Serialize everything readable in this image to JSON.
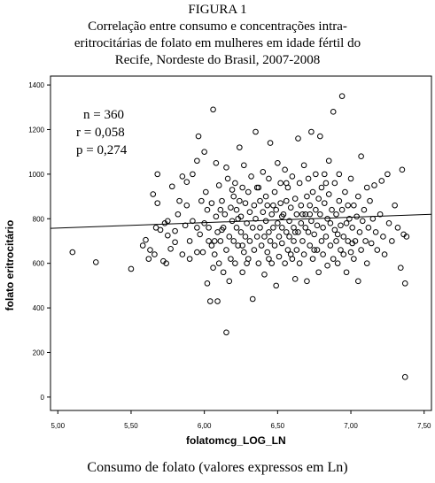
{
  "figure": {
    "title_lines": [
      "FIGURA 1",
      "Correlação entre consumo e concentrações intra-",
      "eritrocitárias de folato em mulheres em idade fértil do",
      "Recife, Nordeste do Brasil, 2007-2008"
    ],
    "caption": "Consumo de folato (valores expressos em Ln)"
  },
  "stats": {
    "n": "n = 360",
    "r": "r  = 0,058",
    "p": "p = 0,274"
  },
  "colors": {
    "background": "#ffffff",
    "plot_bg": "#ffffff",
    "axis": "#000000",
    "marker": "#000000"
  },
  "chart_data": {
    "type": "scatter",
    "title": "",
    "xlabel": "folatomcg_LOG_LN",
    "ylabel": "folato eritrocitário",
    "xlim": [
      4.95,
      7.55
    ],
    "ylim": [
      -60,
      1440
    ],
    "x_ticks": [
      5.0,
      5.5,
      6.0,
      6.5,
      7.0,
      7.5
    ],
    "x_tick_labels": [
      "5,00",
      "5,50",
      "6,00",
      "6,50",
      "7,00",
      "7,50"
    ],
    "y_ticks": [
      0,
      200,
      400,
      600,
      800,
      1000,
      1200,
      1400
    ],
    "y_tick_labels": [
      "0",
      "200",
      "400",
      "600",
      "800",
      "1000",
      "1200",
      "1400"
    ],
    "fit_line": {
      "x": [
        4.95,
        7.55
      ],
      "y": [
        757,
        820
      ]
    },
    "grid": false,
    "points": [
      [
        5.1,
        650
      ],
      [
        5.26,
        605
      ],
      [
        5.5,
        575
      ],
      [
        5.58,
        680
      ],
      [
        5.6,
        705
      ],
      [
        5.62,
        620
      ],
      [
        5.63,
        660
      ],
      [
        5.65,
        910
      ],
      [
        5.66,
        640
      ],
      [
        5.67,
        760
      ],
      [
        5.68,
        1000
      ],
      [
        5.68,
        870
      ],
      [
        5.7,
        750
      ],
      [
        5.72,
        610
      ],
      [
        5.73,
        780
      ],
      [
        5.74,
        600
      ],
      [
        5.75,
        725
      ],
      [
        5.75,
        790
      ],
      [
        5.77,
        665
      ],
      [
        5.78,
        945
      ],
      [
        5.8,
        695
      ],
      [
        5.8,
        745
      ],
      [
        5.82,
        820
      ],
      [
        5.83,
        880
      ],
      [
        5.85,
        640
      ],
      [
        5.85,
        990
      ],
      [
        5.87,
        770
      ],
      [
        5.88,
        860
      ],
      [
        5.88,
        965
      ],
      [
        5.9,
        620
      ],
      [
        5.9,
        700
      ],
      [
        5.92,
        790
      ],
      [
        5.92,
        1000
      ],
      [
        5.95,
        760
      ],
      [
        5.95,
        650
      ],
      [
        5.96,
        1170
      ],
      [
        5.97,
        730
      ],
      [
        5.98,
        880
      ],
      [
        5.99,
        650
      ],
      [
        6.0,
        1100
      ],
      [
        6.0,
        780
      ],
      [
        6.01,
        920
      ],
      [
        6.02,
        840
      ],
      [
        6.02,
        510
      ],
      [
        6.03,
        700
      ],
      [
        6.03,
        760
      ],
      [
        6.04,
        430
      ],
      [
        6.05,
        870
      ],
      [
        6.05,
        680
      ],
      [
        6.06,
        1290
      ],
      [
        6.06,
        580
      ],
      [
        6.07,
        640
      ],
      [
        6.08,
        1050
      ],
      [
        6.08,
        810
      ],
      [
        6.09,
        740
      ],
      [
        6.09,
        430
      ],
      [
        6.1,
        950
      ],
      [
        6.1,
        600
      ],
      [
        6.11,
        700
      ],
      [
        6.11,
        840
      ],
      [
        6.12,
        880
      ],
      [
        6.13,
        560
      ],
      [
        6.13,
        760
      ],
      [
        6.14,
        820
      ],
      [
        6.15,
        660
      ],
      [
        6.15,
        1030
      ],
      [
        6.15,
        290
      ],
      [
        6.16,
        980
      ],
      [
        6.17,
        720
      ],
      [
        6.17,
        520
      ],
      [
        6.18,
        850
      ],
      [
        6.18,
        620
      ],
      [
        6.19,
        790
      ],
      [
        6.2,
        900
      ],
      [
        6.2,
        700
      ],
      [
        6.21,
        960
      ],
      [
        6.21,
        600
      ],
      [
        6.22,
        760
      ],
      [
        6.22,
        840
      ],
      [
        6.23,
        680
      ],
      [
        6.24,
        1120
      ],
      [
        6.24,
        880
      ],
      [
        6.25,
        740
      ],
      [
        6.25,
        810
      ],
      [
        6.26,
        560
      ],
      [
        6.26,
        940
      ],
      [
        6.27,
        650
      ],
      [
        6.27,
        1040
      ],
      [
        6.28,
        720
      ],
      [
        6.28,
        870
      ],
      [
        6.29,
        780
      ],
      [
        6.3,
        920
      ],
      [
        6.3,
        620
      ],
      [
        6.31,
        830
      ],
      [
        6.31,
        700
      ],
      [
        6.32,
        990
      ],
      [
        6.33,
        760
      ],
      [
        6.33,
        440
      ],
      [
        6.34,
        860
      ],
      [
        6.34,
        660
      ],
      [
        6.35,
        1190
      ],
      [
        6.35,
        800
      ],
      [
        6.36,
        720
      ],
      [
        6.36,
        940
      ],
      [
        6.37,
        600
      ],
      [
        6.38,
        880
      ],
      [
        6.38,
        760
      ],
      [
        6.39,
        680
      ],
      [
        6.4,
        830
      ],
      [
        6.4,
        1010
      ],
      [
        6.41,
        720
      ],
      [
        6.41,
        550
      ],
      [
        6.42,
        900
      ],
      [
        6.42,
        790
      ],
      [
        6.43,
        650
      ],
      [
        6.43,
        860
      ],
      [
        6.44,
        740
      ],
      [
        6.44,
        980
      ],
      [
        6.45,
        700
      ],
      [
        6.45,
        1140
      ],
      [
        6.46,
        820
      ],
      [
        6.46,
        600
      ],
      [
        6.47,
        760
      ],
      [
        6.48,
        920
      ],
      [
        6.48,
        680
      ],
      [
        6.49,
        840
      ],
      [
        6.49,
        500
      ],
      [
        6.5,
        780
      ],
      [
        6.5,
        1050
      ],
      [
        6.51,
        720
      ],
      [
        6.51,
        630
      ],
      [
        6.52,
        870
      ],
      [
        6.52,
        960
      ],
      [
        6.53,
        760
      ],
      [
        6.53,
        690
      ],
      [
        6.54,
        820
      ],
      [
        6.55,
        1020
      ],
      [
        6.55,
        600
      ],
      [
        6.56,
        740
      ],
      [
        6.56,
        880
      ],
      [
        6.57,
        660
      ],
      [
        6.57,
        940
      ],
      [
        6.58,
        790
      ],
      [
        6.58,
        720
      ],
      [
        6.59,
        850
      ],
      [
        6.6,
        620
      ],
      [
        6.6,
        990
      ],
      [
        6.61,
        760
      ],
      [
        6.61,
        700
      ],
      [
        6.62,
        890
      ],
      [
        6.62,
        530
      ],
      [
        6.63,
        820
      ],
      [
        6.63,
        660
      ],
      [
        6.64,
        1160
      ],
      [
        6.64,
        740
      ],
      [
        6.65,
        960
      ],
      [
        6.65,
        600
      ],
      [
        6.66,
        780
      ],
      [
        6.66,
        860
      ],
      [
        6.67,
        700
      ],
      [
        6.68,
        1040
      ],
      [
        6.68,
        640
      ],
      [
        6.69,
        820
      ],
      [
        6.69,
        760
      ],
      [
        6.7,
        900
      ],
      [
        6.7,
        520
      ],
      [
        6.71,
        740
      ],
      [
        6.71,
        980
      ],
      [
        6.72,
        680
      ],
      [
        6.72,
        860
      ],
      [
        6.73,
        1190
      ],
      [
        6.73,
        790
      ],
      [
        6.74,
        620
      ],
      [
        6.74,
        920
      ],
      [
        6.75,
        730
      ],
      [
        6.76,
        840
      ],
      [
        6.76,
        1000
      ],
      [
        6.77,
        660
      ],
      [
        6.77,
        770
      ],
      [
        6.78,
        890
      ],
      [
        6.78,
        560
      ],
      [
        6.79,
        1170
      ],
      [
        6.79,
        820
      ],
      [
        6.8,
        700
      ],
      [
        6.8,
        940
      ],
      [
        6.81,
        760
      ],
      [
        6.81,
        640
      ],
      [
        6.82,
        870
      ],
      [
        6.82,
        1000
      ],
      [
        6.83,
        720
      ],
      [
        6.84,
        800
      ],
      [
        6.84,
        590
      ],
      [
        6.85,
        910
      ],
      [
        6.85,
        1060
      ],
      [
        6.86,
        680
      ],
      [
        6.86,
        780
      ],
      [
        6.87,
        840
      ],
      [
        6.88,
        620
      ],
      [
        6.88,
        1280
      ],
      [
        6.89,
        750
      ],
      [
        6.89,
        960
      ],
      [
        6.9,
        700
      ],
      [
        6.9,
        820
      ],
      [
        6.91,
        600
      ],
      [
        6.92,
        880
      ],
      [
        6.92,
        1000
      ],
      [
        6.93,
        660
      ],
      [
        6.93,
        770
      ],
      [
        6.94,
        1350
      ],
      [
        6.94,
        840
      ],
      [
        6.95,
        720
      ],
      [
        6.95,
        640
      ],
      [
        6.96,
        920
      ],
      [
        6.97,
        780
      ],
      [
        6.97,
        560
      ],
      [
        6.98,
        860
      ],
      [
        6.98,
        700
      ],
      [
        6.99,
        800
      ],
      [
        7.0,
        650
      ],
      [
        7.0,
        980
      ],
      [
        7.01,
        760
      ],
      [
        7.02,
        860
      ],
      [
        7.02,
        620
      ],
      [
        7.03,
        700
      ],
      [
        7.04,
        810
      ],
      [
        7.05,
        520
      ],
      [
        7.05,
        900
      ],
      [
        7.06,
        740
      ],
      [
        7.07,
        1080
      ],
      [
        7.07,
        660
      ],
      [
        7.08,
        790
      ],
      [
        7.09,
        840
      ],
      [
        7.1,
        700
      ],
      [
        7.11,
        940
      ],
      [
        7.11,
        600
      ],
      [
        7.12,
        760
      ],
      [
        7.13,
        880
      ],
      [
        7.14,
        690
      ],
      [
        7.15,
        800
      ],
      [
        7.16,
        950
      ],
      [
        7.17,
        740
      ],
      [
        7.18,
        660
      ],
      [
        7.2,
        820
      ],
      [
        7.21,
        970
      ],
      [
        7.22,
        720
      ],
      [
        7.23,
        640
      ],
      [
        7.25,
        1000
      ],
      [
        7.26,
        780
      ],
      [
        7.28,
        700
      ],
      [
        7.3,
        860
      ],
      [
        7.32,
        760
      ],
      [
        7.34,
        580
      ],
      [
        7.35,
        1020
      ],
      [
        7.36,
        730
      ],
      [
        7.37,
        510
      ],
      [
        7.37,
        90
      ],
      [
        7.38,
        720
      ],
      [
        5.95,
        1060
      ],
      [
        6.07,
        700
      ],
      [
        6.19,
        930
      ],
      [
        6.23,
        800
      ],
      [
        6.29,
        600
      ],
      [
        6.37,
        940
      ],
      [
        6.47,
        860
      ],
      [
        6.53,
        810
      ],
      [
        6.59,
        640
      ],
      [
        6.67,
        820
      ],
      [
        6.75,
        660
      ],
      [
        6.83,
        960
      ],
      [
        6.91,
        730
      ],
      [
        7.01,
        690
      ],
      [
        6.12,
        750
      ],
      [
        6.26,
        680
      ],
      [
        6.44,
        620
      ],
      [
        6.56,
        960
      ],
      [
        6.62,
        740
      ],
      [
        6.72,
        820
      ]
    ]
  }
}
